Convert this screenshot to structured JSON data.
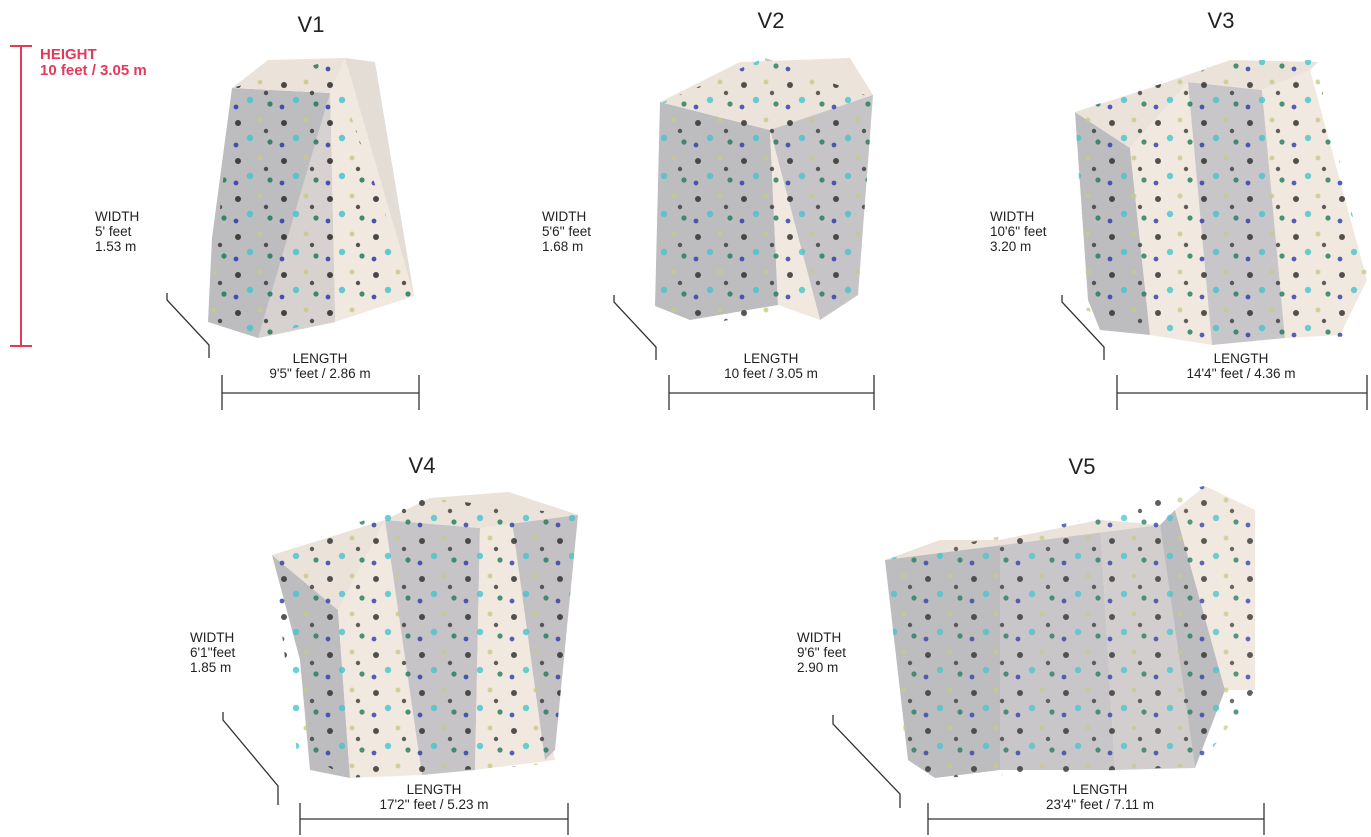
{
  "colors": {
    "accent": "#e5395a",
    "panel_light": "#f1e9e0",
    "panel_mid": "#d7d2cf",
    "panel_dark": "#bdbcbf",
    "line": "#333333"
  },
  "height": {
    "label": "HEIGHT",
    "value": "10 feet / 3.05 m"
  },
  "walls": [
    {
      "title": "V1",
      "width_label": "WIDTH",
      "width_ft": "5' feet",
      "width_m": "1.53 m",
      "length_label": "LENGTH",
      "length": "9'5\" feet / 2.86 m"
    },
    {
      "title": "V2",
      "width_label": "WIDTH",
      "width_ft": "5'6'' feet",
      "width_m": "1.68 m",
      "length_label": "LENGTH",
      "length": "10 feet / 3.05 m"
    },
    {
      "title": "V3",
      "width_label": "WIDTH",
      "width_ft": "10'6'' feet",
      "width_m": "3.20 m",
      "length_label": "LENGTH",
      "length": "14'4'' feet / 4.36 m"
    },
    {
      "title": "V4",
      "width_label": "WIDTH",
      "width_ft": "6'1''feet",
      "width_m": "1.85 m",
      "length_label": "LENGTH",
      "length": "17'2'' feet / 5.23 m"
    },
    {
      "title": "V5",
      "width_label": "WIDTH",
      "width_ft": "9'6'' feet",
      "width_m": "2.90 m",
      "length_label": "LENGTH",
      "length": "23'4'' feet / 7.11 m"
    }
  ]
}
